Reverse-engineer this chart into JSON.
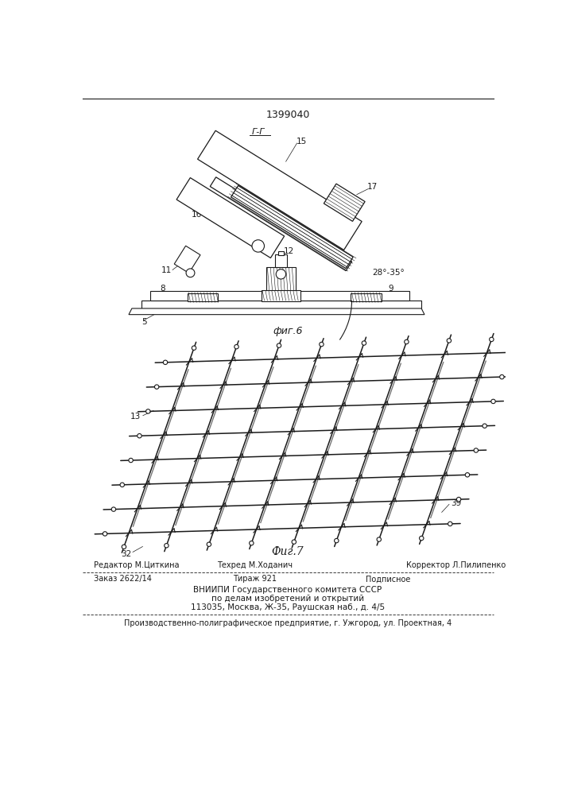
{
  "patent_number": "1399040",
  "fig6_label": "фиг.6",
  "fig7_label": "Фиг.7",
  "bg_color": "#ffffff",
  "line_color": "#1a1a1a",
  "text_color": "#1a1a1a",
  "editor_left": "Редактор М.Циткина",
  "editor_mid": "Техред М.Ходанич",
  "editor_right": "Корректор Л.Пилипенко",
  "order": "Заказ 2622/14",
  "tirazh": "Тираж 921",
  "podpisnoe": "Подписное",
  "vniipii1": "ВНИИПИ Государственного комитета СССР",
  "vniipii2": "по делам изобретений и открытий",
  "vniipii3": "113035, Москва, Ж-35, Раушская наб., д. 4/5",
  "print_line": "Производственно-полиграфическое предприятие, г. Ужгород, ул. Проектная, 4"
}
